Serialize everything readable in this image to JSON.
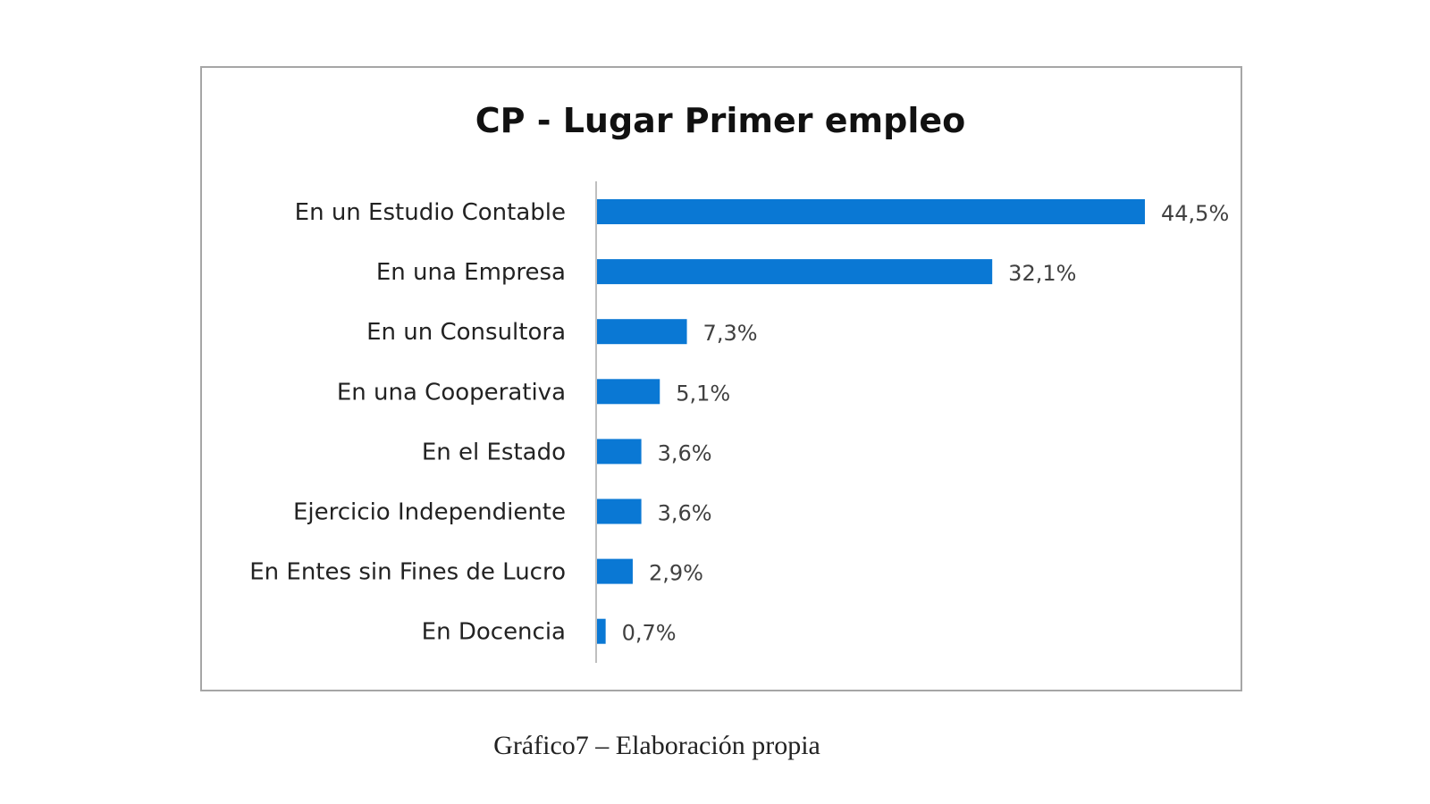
{
  "chart_data": {
    "type": "bar",
    "orientation": "horizontal",
    "title": "CP - Lugar Primer empleo",
    "categories": [
      "En un Estudio Contable",
      "En una Empresa",
      "En un Consultora",
      "En una Cooperativa",
      "En el Estado",
      "Ejercicio Independiente",
      "En Entes sin Fines de Lucro",
      "En Docencia"
    ],
    "values": [
      44.5,
      32.1,
      7.3,
      5.1,
      3.6,
      3.6,
      2.9,
      0.7
    ],
    "data_labels": [
      "44,5%",
      "32,1%",
      "7,3%",
      "5,1%",
      "3,6%",
      "3,6%",
      "2,9%",
      "0,7%"
    ],
    "xlabel": "",
    "ylabel": "",
    "xlim": [
      0,
      44.5
    ],
    "grid": false,
    "legend": "none",
    "bar_color": "#0a78d4"
  },
  "caption": "Gráfico7 – Elaboración propia"
}
